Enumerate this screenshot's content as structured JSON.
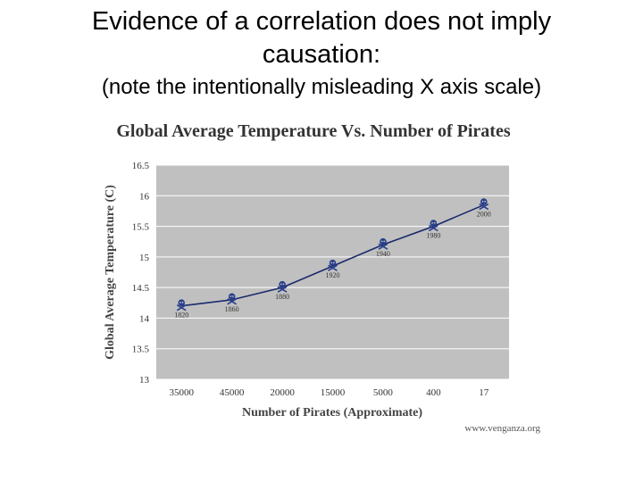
{
  "slide": {
    "title": "Evidence of a correlation does not imply causation:",
    "subtitle": "(note the intentionally misleading X axis scale)"
  },
  "chart_data": {
    "type": "line",
    "title": "Global Average Temperature Vs. Number of Pirates",
    "xlabel": "Number of Pirates (Approximate)",
    "ylabel": "Global Average Temperature (C)",
    "categories": [
      "35000",
      "45000",
      "20000",
      "15000",
      "5000",
      "400",
      "17"
    ],
    "series": [
      {
        "name": "Global Average Temperature",
        "values": [
          14.2,
          14.3,
          14.5,
          14.85,
          15.2,
          15.5,
          15.85
        ],
        "point_labels": [
          "1820",
          "1860",
          "1880",
          "1920",
          "1940",
          "1980",
          "2000"
        ]
      }
    ],
    "ylim": [
      13,
      16.5
    ],
    "yticks": [
      "13",
      "13.5",
      "14",
      "14.5",
      "15",
      "15.5",
      "16",
      "16.5"
    ],
    "grid": true,
    "marker": "skull-and-crossbones",
    "watermark": "www.venganza.org",
    "colors": {
      "plot_background": "#c0c0c0",
      "line": "#1a2a6c",
      "marker": "#2a3f8a",
      "gridline": "#ffffff",
      "title_text": "#333333"
    }
  }
}
